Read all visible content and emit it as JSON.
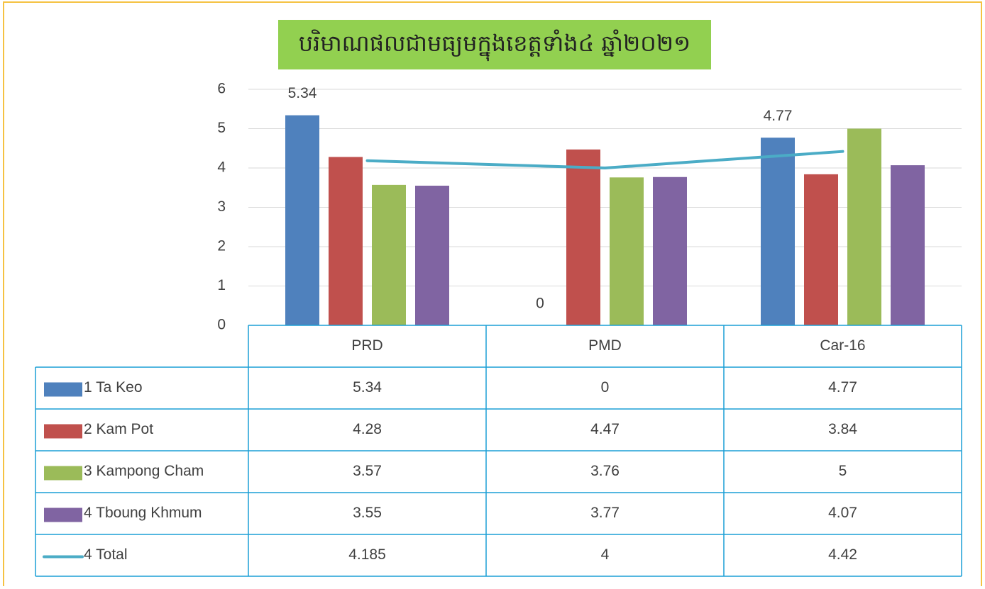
{
  "chart_data": {
    "type": "bar",
    "title": "បរិមាណផលជាមធ្យមក្នុងខេត្តទាំង៤ ឆ្នាំ២០២១",
    "categories": [
      "PRD",
      "PMD",
      "Car-16"
    ],
    "series": [
      {
        "name": "1 Ta Keo",
        "color": "#4f81bd",
        "values": [
          5.34,
          0,
          4.77
        ]
      },
      {
        "name": "2 Kam Pot",
        "color": "#c0504d",
        "values": [
          4.28,
          4.47,
          3.84
        ]
      },
      {
        "name": "3 Kampong Cham",
        "color": "#9bbb59",
        "values": [
          3.57,
          3.76,
          5
        ]
      },
      {
        "name": "4 Tboung Khmum",
        "color": "#8064a2",
        "values": [
          3.55,
          3.77,
          4.07
        ]
      },
      {
        "name": "4 Total",
        "color": "#4bacc6",
        "type": "line",
        "values": [
          4.185,
          4,
          4.42
        ]
      }
    ],
    "ylim": [
      0,
      6
    ],
    "yticks": [
      0,
      1,
      2,
      3,
      4,
      5,
      6
    ],
    "grid": true,
    "data_labels_series": 0
  }
}
